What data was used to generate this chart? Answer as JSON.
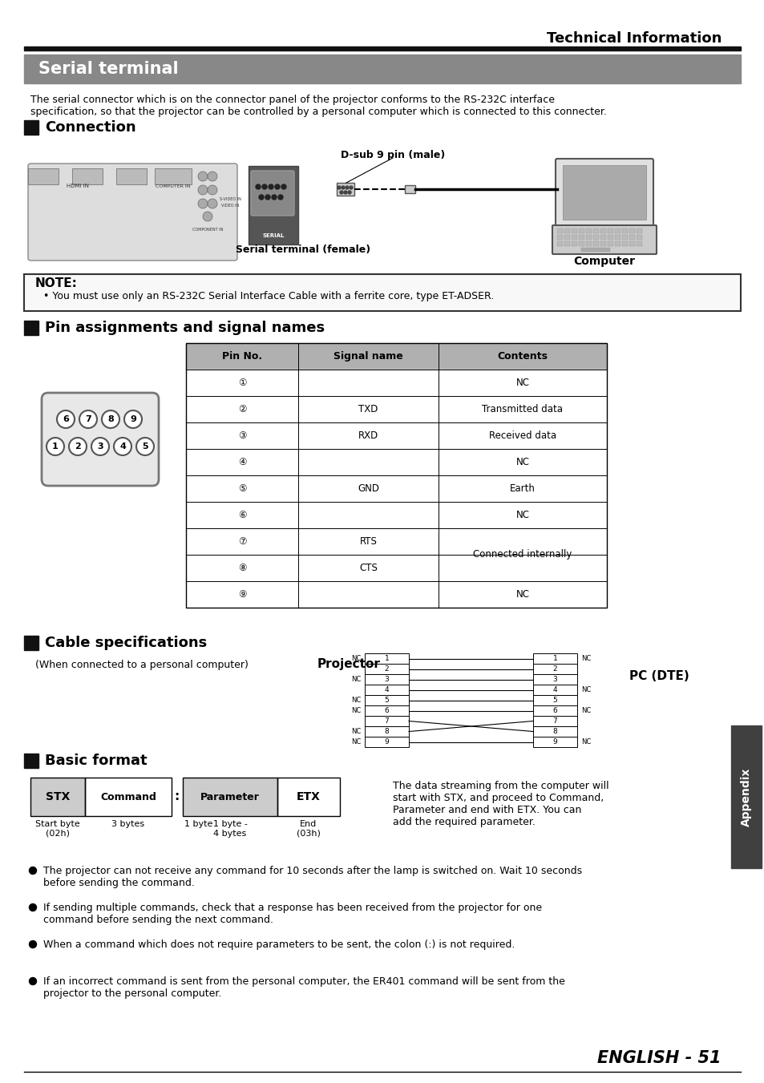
{
  "page_title": "Technical Information",
  "section_title": "Serial terminal",
  "section_bg": "#808080",
  "section_title_color": "#ffffff",
  "intro_text": "The serial connector which is on the connector panel of the projector conforms to the RS-232C interface\nspecification, so that the projector can be controlled by a personal computer which is connected to this connecter.",
  "connection_heading": "Connection",
  "dsub_label": "D-sub 9 pin (male)",
  "serial_terminal_label": "Serial terminal (female)",
  "computer_label": "Computer",
  "note_title": "NOTE:",
  "note_text": "You must use only an RS-232C Serial Interface Cable with a ferrite core, type ET-ADSER.",
  "pin_heading": "Pin assignments and signal names",
  "table_header": [
    "Pin No.",
    "Signal name",
    "Contents"
  ],
  "table_header_bg": "#b0b0b0",
  "table_rows": [
    [
      "①",
      "",
      "NC"
    ],
    [
      "②",
      "TXD",
      "Transmitted data"
    ],
    [
      "③",
      "RXD",
      "Received data"
    ],
    [
      "④",
      "",
      "NC"
    ],
    [
      "⑤",
      "GND",
      "Earth"
    ],
    [
      "⑥",
      "",
      "NC"
    ],
    [
      "⑦",
      "RTS",
      "Connected internally"
    ],
    [
      "⑧",
      "CTS",
      ""
    ],
    [
      "⑨",
      "",
      "NC"
    ]
  ],
  "cable_heading": "Cable specifications",
  "cable_subtext": "(When connected to a personal computer)",
  "projector_label": "Projector",
  "pc_dte_label": "PC (DTE)",
  "cable_left_nc": [
    "NC",
    "",
    "NC",
    "",
    "NC",
    "NC",
    "",
    "NC",
    "NC"
  ],
  "cable_right_nc": [
    "NC",
    "",
    "",
    "NC",
    "",
    "NC",
    "",
    "",
    "NC"
  ],
  "basic_heading": "Basic format",
  "stx_label": "STX",
  "cmd_label": "Command",
  "colon_label": ":",
  "param_label": "Parameter",
  "etx_label": "ETX",
  "start_byte_label": "Start byte\n(02h)",
  "three_bytes_label": "3 bytes",
  "one_byte_label": "1 byte",
  "one_to_four_label": "1 byte -\n4 bytes",
  "end_label": "End\n(03h)",
  "basic_desc": "The data streaming from the computer will\nstart with STX, and proceed to Command,\nParameter and end with ETX. You can\nadd the required parameter.",
  "bullets": [
    "The projector can not receive any command for 10 seconds after the lamp is switched on. Wait 10 seconds\nbefore sending the command.",
    "If sending multiple commands, check that a response has been received from the projector for one\ncommand before sending the next command.",
    "When a command which does not require parameters to be sent, the colon (:) is not required.",
    "If an incorrect command is sent from the personal computer, the ER401 command will be sent from the\nprojector to the personal computer."
  ],
  "appendix_label": "Appendix",
  "page_num": "ENGLISH - 51",
  "bg_color": "#ffffff",
  "text_color": "#000000",
  "table_border_color": "#000000",
  "appendix_bg": "#404040",
  "appendix_text_color": "#ffffff"
}
